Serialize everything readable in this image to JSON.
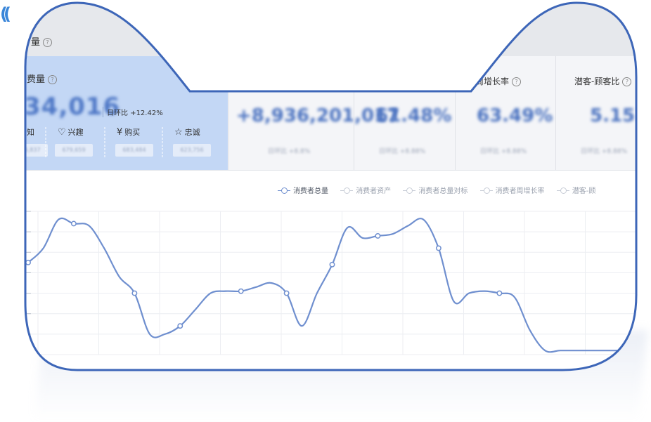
{
  "header": {
    "title_fragment": "量",
    "help_icon": "question-circle-icon"
  },
  "metrics": {
    "primary": {
      "title": "费量",
      "value": "34,016",
      "dod_label": "日环比",
      "dod_value": "+12.42%",
      "sub_items": [
        {
          "icon": "",
          "label": "知",
          "value": "376,837"
        },
        {
          "icon": "heart-icon",
          "glyph": "♡",
          "label": "兴趣",
          "value": "679,659"
        },
        {
          "icon": "yen-icon",
          "glyph": "¥",
          "label": "购买",
          "value": "683,484"
        },
        {
          "icon": "star-icon",
          "glyph": "☆",
          "label": "忠诚",
          "value": "623,756"
        }
      ]
    },
    "cards": [
      {
        "label": "",
        "value": "+8,936,201,017",
        "sub": "日环比 +8.8%"
      },
      {
        "label": "",
        "value": "61.48%",
        "sub": "日环比 +8.88%"
      },
      {
        "label": "周增长率",
        "value": "63.49%",
        "sub": "日环比 +8.88%"
      },
      {
        "label": "潜客-顾客比",
        "value": "5.15",
        "sub": "日环比 +8.88%"
      }
    ]
  },
  "legend": [
    {
      "label": "消费者总量",
      "active": true
    },
    {
      "label": "消费者资产",
      "active": false
    },
    {
      "label": "消费者总量对标",
      "active": false
    },
    {
      "label": "消费者周增长率",
      "active": false
    },
    {
      "label": "潜客-顾",
      "active": false
    }
  ],
  "colors": {
    "frame": "#3d66b8",
    "primary_card": "#c3d7f5",
    "line": "#6f8fcf",
    "grid": "#eceef2"
  },
  "chart_data": {
    "type": "line",
    "series": [
      {
        "name": "消费者总量",
        "x": [
          0,
          1,
          2,
          3,
          4,
          5,
          6,
          7,
          8,
          9,
          10,
          11,
          12,
          13,
          14,
          15,
          16,
          17,
          18,
          19,
          20,
          21,
          22,
          23,
          24,
          25,
          26,
          27,
          28,
          29,
          30,
          31,
          32,
          33,
          34,
          35,
          36,
          37,
          38,
          39,
          40
        ],
        "values": [
          45,
          52,
          66,
          64,
          63,
          52,
          38,
          30,
          10,
          10,
          14,
          22,
          30,
          31,
          31,
          33,
          35,
          30,
          14,
          30,
          44,
          62,
          57,
          58,
          59,
          63,
          66,
          52,
          26,
          30,
          31,
          30,
          28,
          12,
          2,
          2,
          2,
          2,
          2,
          2,
          2
        ],
        "marker_indices": [
          0,
          3,
          7,
          10,
          14,
          17,
          20,
          23,
          27,
          31
        ]
      }
    ],
    "ylim": [
      0,
      70
    ],
    "grid": true
  }
}
